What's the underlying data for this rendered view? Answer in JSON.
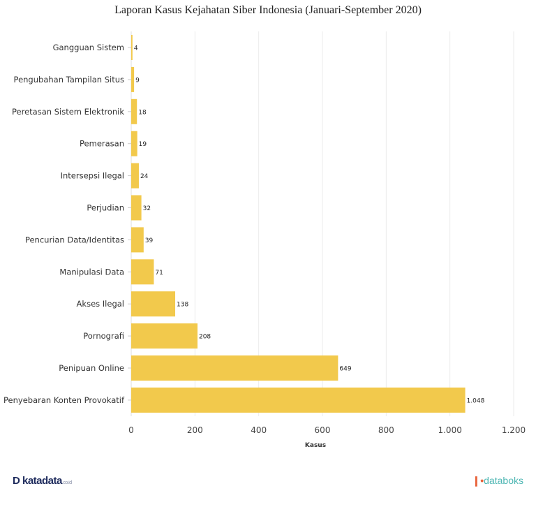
{
  "chart_data": {
    "type": "bar",
    "orientation": "horizontal",
    "title": "Laporan Kasus Kejahatan Siber Indonesia (Januari-September 2020)",
    "xlabel": "Kasus",
    "ylabel": "",
    "categories": [
      "Gangguan Sistem",
      "Pengubahan Tampilan Situs",
      "Peretasan Sistem Elektronik",
      "Pemerasan",
      "Intersepsi Ilegal",
      "Perjudian",
      "Pencurian Data/Identitas",
      "Manipulasi Data",
      "Akses Ilegal",
      "Pornografi",
      "Penipuan Online",
      "Penyebaran Konten Provokatif"
    ],
    "values": [
      4,
      9,
      18,
      19,
      24,
      32,
      39,
      71,
      138,
      208,
      649,
      1048
    ],
    "data_labels": [
      "4",
      "9",
      "18",
      "19",
      "24",
      "32",
      "39",
      "71",
      "138",
      "208",
      "649",
      "1.048"
    ],
    "xlim": [
      0,
      1200
    ],
    "xticks": [
      0,
      200,
      400,
      600,
      800,
      1000,
      1200
    ],
    "xtick_labels": [
      "0",
      "200",
      "400",
      "600",
      "800",
      "1.000",
      "1.200"
    ],
    "grid": true,
    "bar_color": "#f2c94c"
  },
  "footer": {
    "left_logo": "katadata.co.id",
    "right_logo": "databoks"
  }
}
